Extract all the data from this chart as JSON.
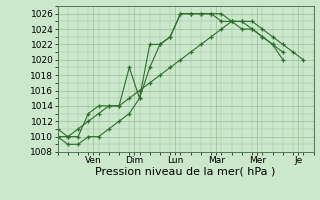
{
  "background_color": "#cce8cc",
  "plot_bg_color": "#cce8cc",
  "grid_color": "#99bb99",
  "line_color": "#2d6e2d",
  "ylim": [
    1008,
    1027
  ],
  "yticks": [
    1008,
    1010,
    1012,
    1014,
    1016,
    1018,
    1020,
    1022,
    1024,
    1026
  ],
  "xlim": [
    0,
    25
  ],
  "xlabel": "Pression niveau de la mer( hPa )",
  "xlabel_fontsize": 8,
  "tick_fontsize": 6.5,
  "day_labels": [
    "Ven",
    "Dim",
    "Lun",
    "Mar",
    "Mer",
    "Je"
  ],
  "day_positions": [
    3.5,
    7.5,
    11.5,
    15.5,
    19.5,
    23.5
  ],
  "series1_x": [
    0,
    1,
    2,
    3,
    4,
    5,
    6,
    7,
    8,
    9,
    10,
    11,
    12,
    13,
    14,
    15,
    16,
    17,
    18,
    19,
    20,
    21,
    22
  ],
  "series1_y": [
    1011,
    1010,
    1010,
    1013,
    1014,
    1014,
    1014,
    1019,
    1015,
    1022,
    1022,
    1023,
    1026,
    1026,
    1026,
    1026,
    1026,
    1025,
    1025,
    1024,
    1023,
    1022,
    1021
  ],
  "series2_x": [
    0,
    1,
    2,
    3,
    4,
    5,
    6,
    7,
    8,
    9,
    10,
    11,
    12,
    13,
    14,
    15,
    16,
    17,
    18,
    19,
    20,
    21,
    22,
    23,
    24
  ],
  "series2_y": [
    1010,
    1010,
    1011,
    1012,
    1013,
    1014,
    1014,
    1015,
    1016,
    1017,
    1018,
    1019,
    1020,
    1021,
    1022,
    1023,
    1024,
    1025,
    1025,
    1025,
    1024,
    1023,
    1022,
    1021,
    1020
  ],
  "series3_x": [
    0,
    1,
    2,
    3,
    4,
    5,
    6,
    7,
    8,
    9,
    10,
    11,
    12,
    13,
    14,
    15,
    16,
    17,
    18,
    19,
    20,
    21,
    22
  ],
  "series3_y": [
    1010,
    1009,
    1009,
    1010,
    1010,
    1011,
    1012,
    1013,
    1015,
    1019,
    1022,
    1023,
    1026,
    1026,
    1026,
    1026,
    1025,
    1025,
    1024,
    1024,
    1023,
    1022,
    1020
  ]
}
